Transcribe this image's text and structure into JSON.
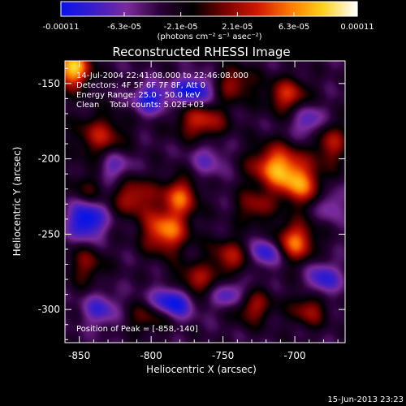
{
  "chart_data": {
    "type": "heatmap",
    "title": "Reconstructed RHESSI Image",
    "xlabel": "Heliocentric X (arcsec)",
    "ylabel": "Heliocentric Y (arcsec)",
    "xlim": [
      -860,
      -665
    ],
    "ylim": [
      -322,
      -135
    ],
    "x_ticks": [
      "-850",
      "-800",
      "-750",
      "-700"
    ],
    "x_tick_values": [
      -850,
      -800,
      -750,
      -700
    ],
    "y_ticks": [
      "-150",
      "-200",
      "-250",
      "-300"
    ],
    "y_tick_values": [
      -150,
      -200,
      -250,
      -300
    ],
    "colorbar": {
      "ticks": [
        "-0.00011",
        "-6.3e-05",
        "-2.1e-05",
        "2.1e-05",
        "6.3e-05",
        "0.00011"
      ],
      "tick_values": [
        -0.00011,
        -6.3e-05,
        -2.1e-05,
        2.1e-05,
        6.3e-05,
        0.00011
      ],
      "range": [
        -0.00011,
        0.00011
      ],
      "unit_label": "(photons cm⁻² s⁻¹ asec⁻²)",
      "colors": [
        "#0a14e6",
        "#3c1ec8",
        "#7a2a9a",
        "#2a0038",
        "#000000",
        "#7a0000",
        "#d01a00",
        "#ff7a00",
        "#ffd21e",
        "#ffffff"
      ]
    },
    "annotations": [
      "14-Jul-2004 22:41:08.000 to 22:46:08.000",
      "Detectors: 4F 5F 6F 7F 8F, Att 0",
      "Energy Range: 25.0 - 50.0 keV",
      "Clean    Total counts: 5.02E+03"
    ],
    "peak_label": "Position of Peak = [-858,-140]",
    "peak_position": [
      -858,
      -140
    ],
    "field_blobs": [
      {
        "x": -855,
        "y": -140,
        "value": 0.00011,
        "sx": 9,
        "sy": 9
      },
      {
        "x": -835,
        "y": -185,
        "value": 5e-05,
        "sx": 12,
        "sy": 10
      },
      {
        "x": -812,
        "y": -225,
        "value": 5.5e-05,
        "sx": 10,
        "sy": 9
      },
      {
        "x": -790,
        "y": -248,
        "value": 8.5e-05,
        "sx": 11,
        "sy": 10
      },
      {
        "x": -780,
        "y": -225,
        "value": 7e-05,
        "sx": 9,
        "sy": 9
      },
      {
        "x": -765,
        "y": -175,
        "value": 6e-05,
        "sx": 12,
        "sy": 9
      },
      {
        "x": -742,
        "y": -150,
        "value": 4.5e-05,
        "sx": 10,
        "sy": 8
      },
      {
        "x": -712,
        "y": -205,
        "value": 9e-05,
        "sx": 13,
        "sy": 10
      },
      {
        "x": -696,
        "y": -218,
        "value": 7e-05,
        "sx": 11,
        "sy": 9
      },
      {
        "x": -700,
        "y": -255,
        "value": 8e-05,
        "sx": 10,
        "sy": 9
      },
      {
        "x": -675,
        "y": -190,
        "value": 5e-05,
        "sx": 8,
        "sy": 10
      },
      {
        "x": -705,
        "y": -158,
        "value": 6e-05,
        "sx": 10,
        "sy": 8
      },
      {
        "x": -745,
        "y": -265,
        "value": 4.5e-05,
        "sx": 11,
        "sy": 9
      },
      {
        "x": -770,
        "y": -282,
        "value": 5e-05,
        "sx": 12,
        "sy": 8
      },
      {
        "x": -730,
        "y": -298,
        "value": 5e-05,
        "sx": 10,
        "sy": 8
      },
      {
        "x": -690,
        "y": -300,
        "value": 4.5e-05,
        "sx": 9,
        "sy": 8
      },
      {
        "x": -800,
        "y": -305,
        "value": 3.5e-05,
        "sx": 12,
        "sy": 7
      },
      {
        "x": -845,
        "y": -270,
        "value": 3.5e-05,
        "sx": 9,
        "sy": 10
      },
      {
        "x": -845,
        "y": -222,
        "value": 3e-05,
        "sx": 8,
        "sy": 9
      },
      {
        "x": -728,
        "y": -232,
        "value": 4e-05,
        "sx": 9,
        "sy": 8
      },
      {
        "x": -770,
        "y": -155,
        "value": -8e-05,
        "sx": 10,
        "sy": 7
      },
      {
        "x": -800,
        "y": -160,
        "value": -6.5e-05,
        "sx": 9,
        "sy": 7
      },
      {
        "x": -845,
        "y": -240,
        "value": -9e-05,
        "sx": 9,
        "sy": 10
      },
      {
        "x": -785,
        "y": -295,
        "value": -9e-05,
        "sx": 10,
        "sy": 8
      },
      {
        "x": -745,
        "y": -290,
        "value": -6e-05,
        "sx": 9,
        "sy": 7
      },
      {
        "x": -720,
        "y": -262,
        "value": -7e-05,
        "sx": 8,
        "sy": 7
      },
      {
        "x": -680,
        "y": -280,
        "value": -6e-05,
        "sx": 8,
        "sy": 8
      },
      {
        "x": -690,
        "y": -175,
        "value": -5e-05,
        "sx": 8,
        "sy": 8
      },
      {
        "x": -825,
        "y": -205,
        "value": -4.5e-05,
        "sx": 8,
        "sy": 8
      },
      {
        "x": -760,
        "y": -200,
        "value": -3.5e-05,
        "sx": 9,
        "sy": 9
      },
      {
        "x": -835,
        "y": -300,
        "value": -5e-05,
        "sx": 9,
        "sy": 8
      },
      {
        "x": -675,
        "y": -230,
        "value": -4e-05,
        "sx": 7,
        "sy": 8
      }
    ],
    "baseline": -3.5e-05
  },
  "footer": {
    "timestamp": "15-Jun-2013 23:23"
  },
  "colors": {
    "background": "#000000",
    "text": "#ffffff",
    "frame": "#ffffff"
  }
}
